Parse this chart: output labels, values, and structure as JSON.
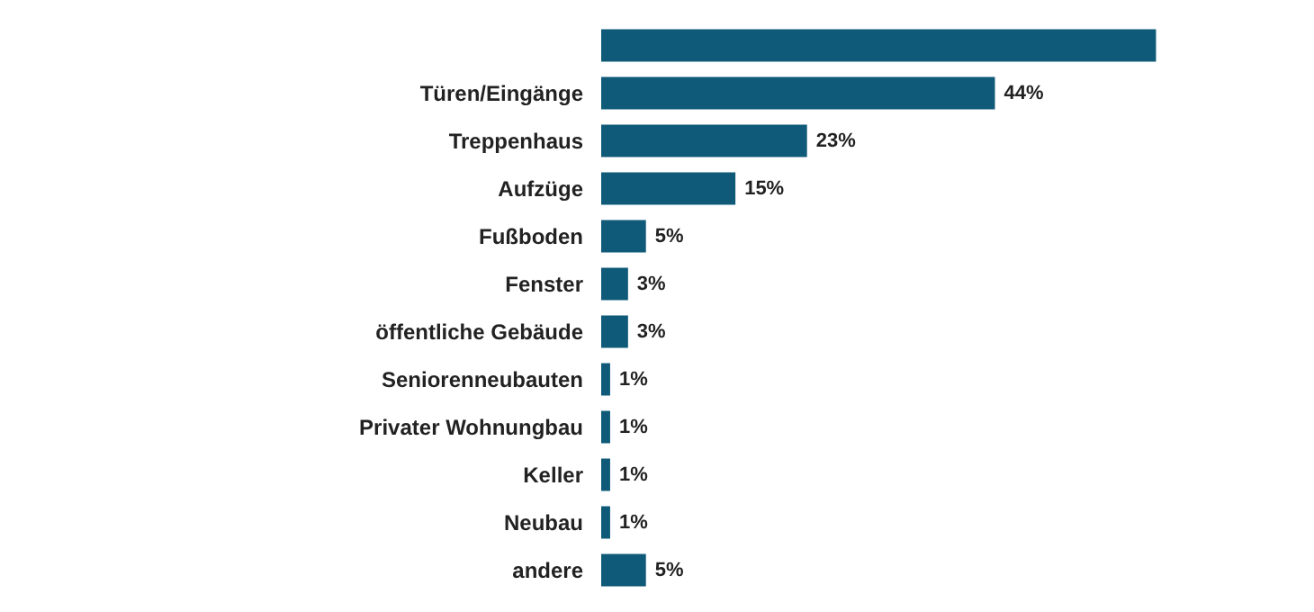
{
  "chart_data": {
    "type": "bar",
    "orientation": "horizontal",
    "categories": [
      null,
      "Türen/Eingänge",
      "Treppenhaus",
      "Aufzüge",
      "Fußboden",
      "Fenster",
      "öffentliche Gebäude",
      "Seniorenneubauten",
      "Privater Wohnungbau",
      "Keller",
      "Neubau",
      "andere"
    ],
    "values": [
      62,
      44,
      23,
      15,
      5,
      3,
      3,
      1,
      1,
      1,
      1,
      5
    ],
    "value_labels": [
      null,
      "44%",
      "23%",
      "15%",
      "5%",
      "3%",
      "3%",
      "1%",
      "1%",
      "1%",
      "1%",
      "5%"
    ],
    "color": "#0f5a78"
  }
}
